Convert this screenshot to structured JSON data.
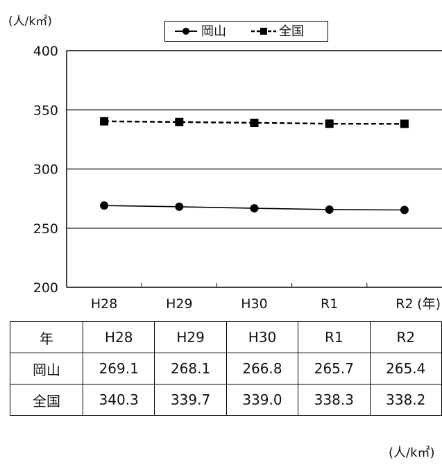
{
  "chart_data": {
    "type": "line",
    "categories": [
      "H28",
      "H29",
      "H30",
      "R1",
      "R2"
    ],
    "series": [
      {
        "name": "岡山",
        "values": [
          269.1,
          268.1,
          266.8,
          265.7,
          265.4
        ],
        "line_style": "solid",
        "marker": "circle",
        "color": "#000000"
      },
      {
        "name": "全国",
        "values": [
          340.3,
          339.7,
          339.0,
          338.3,
          338.2
        ],
        "line_style": "dashed",
        "marker": "square",
        "color": "#000000"
      }
    ],
    "ylabel": "(人/k㎡)",
    "xlabel": "(年)",
    "ylim": [
      200,
      400
    ],
    "yticks": [
      200,
      250,
      300,
      350,
      400
    ],
    "grid": true,
    "legend_position": "top-center"
  },
  "table": {
    "header": [
      "年",
      "H28",
      "H29",
      "H30",
      "R1",
      "R2"
    ],
    "rows": [
      [
        "岡山",
        "269.1",
        "268.1",
        "266.8",
        "265.7",
        "265.4"
      ],
      [
        "全国",
        "340.3",
        "339.7",
        "339.0",
        "338.3",
        "338.2"
      ]
    ],
    "unit": "(人/k㎡)"
  }
}
